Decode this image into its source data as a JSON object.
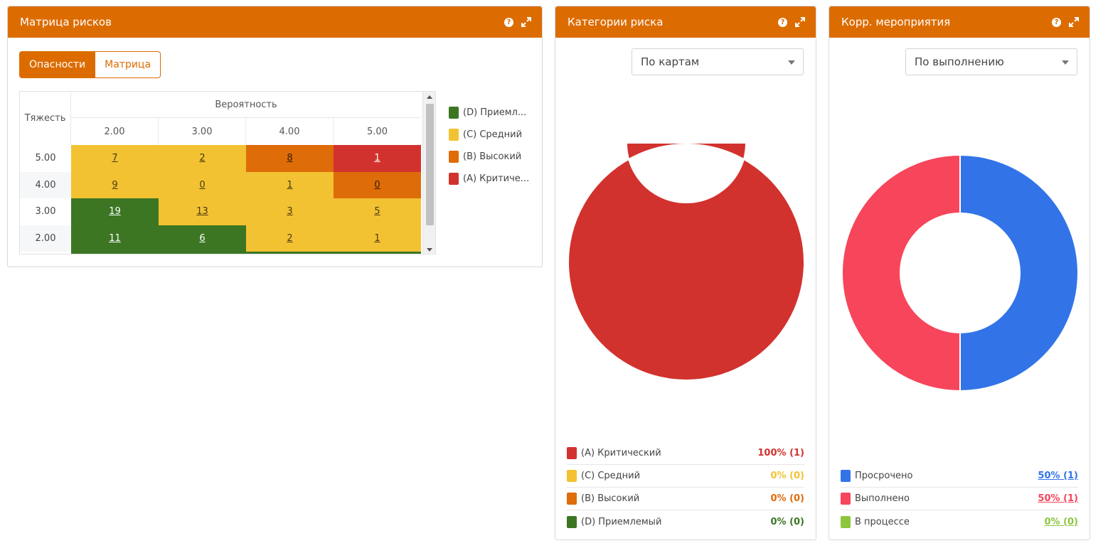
{
  "matrix_panel": {
    "title": "Матрица рисков",
    "tabs": [
      {
        "label": "Опасности",
        "active": true
      },
      {
        "label": "Матрица",
        "active": false
      }
    ],
    "severity_label": "Тяжесть",
    "probability_label": "Вероятность",
    "columns": [
      "2.00",
      "3.00",
      "4.00",
      "5.00"
    ],
    "rows": [
      {
        "label": "5.00",
        "cells": [
          {
            "value": "7",
            "category": "C"
          },
          {
            "value": "2",
            "category": "C"
          },
          {
            "value": "8",
            "category": "B"
          },
          {
            "value": "1",
            "category": "A"
          }
        ]
      },
      {
        "label": "4.00",
        "cells": [
          {
            "value": "9",
            "category": "C"
          },
          {
            "value": "0",
            "category": "C"
          },
          {
            "value": "1",
            "category": "C"
          },
          {
            "value": "0",
            "category": "B"
          }
        ]
      },
      {
        "label": "3.00",
        "cells": [
          {
            "value": "19",
            "category": "D"
          },
          {
            "value": "13",
            "category": "C"
          },
          {
            "value": "3",
            "category": "C"
          },
          {
            "value": "5",
            "category": "C"
          }
        ]
      },
      {
        "label": "2.00",
        "cells": [
          {
            "value": "11",
            "category": "D"
          },
          {
            "value": "6",
            "category": "D"
          },
          {
            "value": "2",
            "category": "C"
          },
          {
            "value": "1",
            "category": "C"
          }
        ]
      }
    ],
    "legend": [
      {
        "label": "(D) Приемл...",
        "color": "#3c7623"
      },
      {
        "label": "(C) Средний",
        "color": "#f2c232"
      },
      {
        "label": "(B) Высокий",
        "color": "#dd6c09"
      },
      {
        "label": "(A) Критиче...",
        "color": "#d2322e"
      }
    ]
  },
  "category_panel": {
    "title": "Категории риска",
    "dropdown_value": "По картам",
    "legend": [
      {
        "label": "(A) Критический",
        "value": "100% (1)",
        "color": "#d2322e",
        "fraction": 1.0
      },
      {
        "label": "(C) Средний",
        "value": "0% (0)",
        "color": "#f2c232",
        "fraction": 0
      },
      {
        "label": "(B) Высокий",
        "value": "0% (0)",
        "color": "#dd6c09",
        "fraction": 0
      },
      {
        "label": "(D) Приемлемый",
        "value": "0% (0)",
        "color": "#3c7623",
        "fraction": 0
      }
    ]
  },
  "corrective_panel": {
    "title": "Корр. мероприятия",
    "dropdown_value": "По выполнению",
    "legend": [
      {
        "label": "Просрочено",
        "value": "50% (1)",
        "color": "#3274e8",
        "fraction": 0.5
      },
      {
        "label": "Выполнено",
        "value": "50% (1)",
        "color": "#f7455b",
        "fraction": 0.5
      },
      {
        "label": "В процессе",
        "value": "0% (0)",
        "color": "#8cc63f",
        "fraction": 0
      }
    ]
  },
  "colors": {
    "header": "#dc6c00",
    "D": "#3c7623",
    "C": "#f2c232",
    "B": "#dd6c09",
    "A": "#d2322e"
  },
  "icons": [
    "help-icon",
    "expand-icon",
    "chevron-down-icon"
  ]
}
